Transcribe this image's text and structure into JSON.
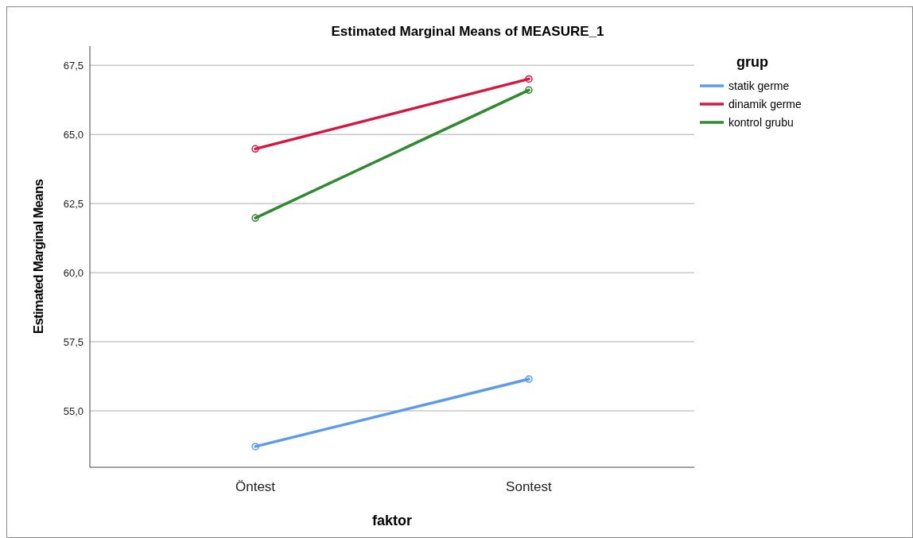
{
  "chart_data": {
    "type": "line",
    "title": "Estimated Marginal Means of MEASURE_1",
    "xlabel": "faktor",
    "ylabel": "Estimated Marginal Means",
    "legend_title": "grup",
    "categories": [
      "Öntest",
      "Sontest"
    ],
    "series": [
      {
        "name": "statik germe",
        "color": "#5b9bec",
        "values": [
          53.71,
          56.15
        ]
      },
      {
        "name": "dinamik germe",
        "color": "#d6163f",
        "values": [
          64.48,
          67.01
        ]
      },
      {
        "name": "kontrol grubu",
        "color": "#2e8a2e",
        "values": [
          61.98,
          66.61
        ]
      }
    ],
    "ylim": [
      52.96,
      68.2
    ],
    "yticks": [
      {
        "value": 55,
        "label": "55,0"
      },
      {
        "value": 57.5,
        "label": "57,5"
      },
      {
        "value": 60,
        "label": "60,0"
      },
      {
        "value": 62.5,
        "label": "62,5"
      },
      {
        "value": 65,
        "label": "65,0"
      },
      {
        "value": 67.5,
        "label": "67,5"
      }
    ],
    "grid": "y",
    "legend": "top right",
    "marker": "circle",
    "line_style": "solid"
  }
}
